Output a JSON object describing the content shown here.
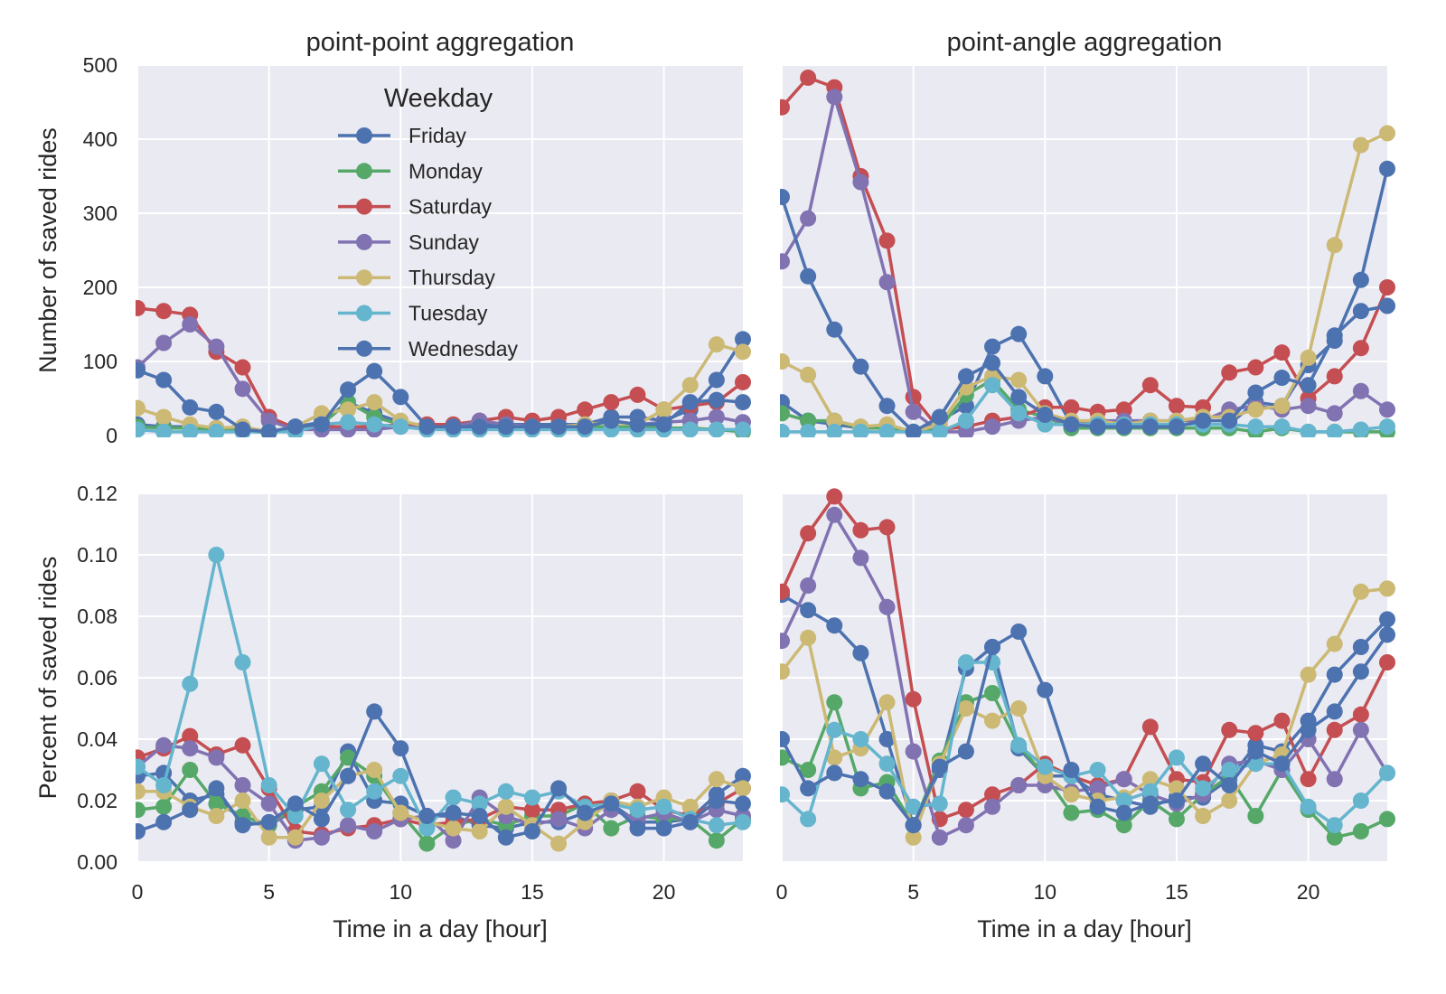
{
  "colors": {
    "panel_bg": "#eaeaf2",
    "grid": "#ffffff",
    "text": "#262626",
    "series": {
      "Friday": "#4c72b0",
      "Monday": "#55a868",
      "Saturday": "#c44e52",
      "Sunday": "#8172b2",
      "Thursday": "#ccb974",
      "Tuesday": "#64b5cd",
      "Wednesday": "#4c72b0"
    }
  },
  "legend": {
    "title": "Weekday",
    "entries": [
      "Friday",
      "Monday",
      "Saturday",
      "Sunday",
      "Thursday",
      "Tuesday",
      "Wednesday"
    ],
    "placement": "top-center of top-left panel"
  },
  "chart_data": [
    {
      "type": "line",
      "title": "point-point aggregation",
      "xlabel": "",
      "ylabel": "Number of saved rides",
      "xlim": [
        0,
        23
      ],
      "ylim": [
        0,
        500
      ],
      "xticks": [
        0,
        5,
        10,
        15,
        20
      ],
      "yticks": [
        0,
        100,
        200,
        300,
        400,
        500
      ],
      "ytick_labels": [
        "0",
        "100",
        "200",
        "300",
        "400",
        "500"
      ],
      "show_xtick_labels": false,
      "grid": true,
      "legend": true,
      "x": [
        0,
        1,
        2,
        3,
        4,
        5,
        6,
        7,
        8,
        9,
        10,
        11,
        12,
        13,
        14,
        15,
        16,
        17,
        18,
        19,
        20,
        21,
        22,
        23
      ],
      "series": [
        {
          "name": "Friday",
          "values": [
            15,
            12,
            12,
            10,
            8,
            5,
            12,
            18,
            45,
            30,
            18,
            12,
            12,
            15,
            15,
            15,
            15,
            15,
            25,
            25,
            20,
            35,
            75,
            130
          ]
        },
        {
          "name": "Monday",
          "values": [
            12,
            10,
            10,
            8,
            6,
            4,
            10,
            15,
            45,
            25,
            15,
            10,
            10,
            12,
            10,
            10,
            12,
            12,
            12,
            12,
            10,
            10,
            8,
            5
          ]
        },
        {
          "name": "Saturday",
          "values": [
            172,
            168,
            163,
            113,
            92,
            25,
            10,
            12,
            12,
            12,
            15,
            15,
            15,
            20,
            25,
            20,
            25,
            35,
            45,
            55,
            35,
            40,
            45,
            72
          ]
        },
        {
          "name": "Sunday",
          "values": [
            92,
            125,
            150,
            120,
            63,
            20,
            8,
            8,
            8,
            8,
            12,
            10,
            12,
            20,
            15,
            12,
            12,
            12,
            20,
            15,
            18,
            20,
            25,
            18
          ]
        },
        {
          "name": "Thursday",
          "values": [
            37,
            25,
            15,
            10,
            12,
            5,
            12,
            30,
            35,
            45,
            20,
            12,
            12,
            12,
            12,
            12,
            12,
            15,
            18,
            15,
            35,
            68,
            123,
            113
          ]
        },
        {
          "name": "Tuesday",
          "values": [
            8,
            5,
            5,
            5,
            5,
            5,
            5,
            15,
            18,
            15,
            12,
            8,
            8,
            8,
            8,
            8,
            8,
            8,
            8,
            8,
            8,
            8,
            8,
            8
          ]
        },
        {
          "name": "Wednesday",
          "values": [
            88,
            75,
            38,
            32,
            8,
            5,
            12,
            15,
            62,
            87,
            52,
            12,
            12,
            12,
            12,
            12,
            12,
            12,
            20,
            15,
            15,
            45,
            48,
            45
          ]
        }
      ]
    },
    {
      "type": "line",
      "title": "point-angle aggregation",
      "xlabel": "",
      "ylabel": "",
      "xlim": [
        0,
        23
      ],
      "ylim": [
        0,
        500
      ],
      "xticks": [
        0,
        5,
        10,
        15,
        20
      ],
      "yticks": [
        0,
        100,
        200,
        300,
        400,
        500
      ],
      "show_xtick_labels": false,
      "show_ytick_labels": false,
      "grid": true,
      "x": [
        0,
        1,
        2,
        3,
        4,
        5,
        6,
        7,
        8,
        9,
        10,
        11,
        12,
        13,
        14,
        15,
        16,
        17,
        18,
        19,
        20,
        21,
        22,
        23
      ],
      "series": [
        {
          "name": "Friday",
          "values": [
            45,
            20,
            15,
            10,
            10,
            5,
            20,
            40,
            120,
            137,
            80,
            15,
            15,
            15,
            15,
            15,
            15,
            15,
            45,
            40,
            95,
            128,
            210,
            360
          ]
        },
        {
          "name": "Monday",
          "values": [
            30,
            20,
            20,
            10,
            10,
            5,
            10,
            55,
            75,
            35,
            25,
            10,
            10,
            10,
            10,
            10,
            10,
            10,
            5,
            10,
            5,
            5,
            5,
            5
          ]
        },
        {
          "name": "Saturday",
          "values": [
            443,
            483,
            470,
            350,
            263,
            52,
            8,
            12,
            20,
            25,
            38,
            38,
            32,
            35,
            68,
            40,
            38,
            85,
            92,
            112,
            50,
            80,
            118,
            200
          ]
        },
        {
          "name": "Sunday",
          "values": [
            235,
            293,
            457,
            342,
            207,
            32,
            5,
            5,
            12,
            20,
            25,
            15,
            20,
            20,
            20,
            20,
            20,
            35,
            40,
            35,
            40,
            30,
            60,
            35
          ]
        },
        {
          "name": "Thursday",
          "values": [
            100,
            82,
            20,
            12,
            15,
            5,
            15,
            65,
            80,
            75,
            30,
            20,
            20,
            15,
            20,
            20,
            25,
            25,
            35,
            40,
            105,
            257,
            392,
            408
          ]
        },
        {
          "name": "Tuesday",
          "values": [
            5,
            5,
            5,
            5,
            5,
            5,
            5,
            20,
            68,
            30,
            15,
            15,
            15,
            15,
            15,
            15,
            15,
            15,
            12,
            12,
            5,
            5,
            8,
            12
          ]
        },
        {
          "name": "Wednesday",
          "values": [
            322,
            215,
            143,
            93,
            40,
            5,
            25,
            80,
            98,
            52,
            28,
            15,
            12,
            12,
            12,
            12,
            20,
            20,
            58,
            78,
            68,
            135,
            168,
            175
          ]
        }
      ]
    },
    {
      "type": "line",
      "title": "",
      "xlabel": "Time in a day [hour]",
      "ylabel": "Percent of saved rides",
      "xlim": [
        0,
        23
      ],
      "ylim": [
        0,
        0.12
      ],
      "xticks": [
        0,
        5,
        10,
        15,
        20
      ],
      "xtick_labels": [
        "0",
        "5",
        "10",
        "15",
        "20"
      ],
      "yticks": [
        0,
        0.02,
        0.04,
        0.06,
        0.08,
        0.1,
        0.12
      ],
      "ytick_labels": [
        "0.00",
        "0.02",
        "0.04",
        "0.06",
        "0.08",
        "0.10",
        "0.12"
      ],
      "grid": true,
      "x": [
        0,
        1,
        2,
        3,
        4,
        5,
        6,
        7,
        8,
        9,
        10,
        11,
        12,
        13,
        14,
        15,
        16,
        17,
        18,
        19,
        20,
        21,
        22,
        23
      ],
      "series": [
        {
          "name": "Friday",
          "values": [
            0.028,
            0.029,
            0.02,
            0.022,
            0.013,
            0.012,
            0.017,
            0.018,
            0.036,
            0.02,
            0.019,
            0.015,
            0.015,
            0.012,
            0.011,
            0.013,
            0.013,
            0.016,
            0.019,
            0.013,
            0.013,
            0.014,
            0.022,
            0.028
          ]
        },
        {
          "name": "Monday",
          "values": [
            0.017,
            0.018,
            0.03,
            0.019,
            0.015,
            0.012,
            0.018,
            0.023,
            0.034,
            0.028,
            0.016,
            0.006,
            0.012,
            0.014,
            0.012,
            0.015,
            0.015,
            0.019,
            0.011,
            0.015,
            0.014,
            0.014,
            0.007,
            0.014
          ]
        },
        {
          "name": "Saturday",
          "values": [
            0.034,
            0.037,
            0.041,
            0.035,
            0.038,
            0.024,
            0.01,
            0.009,
            0.011,
            0.012,
            0.014,
            0.012,
            0.013,
            0.014,
            0.018,
            0.017,
            0.017,
            0.019,
            0.02,
            0.023,
            0.017,
            0.015,
            0.019,
            0.024
          ]
        },
        {
          "name": "Sunday",
          "values": [
            0.031,
            0.038,
            0.037,
            0.034,
            0.025,
            0.019,
            0.007,
            0.008,
            0.012,
            0.01,
            0.014,
            0.015,
            0.007,
            0.021,
            0.015,
            0.012,
            0.014,
            0.011,
            0.017,
            0.014,
            0.016,
            0.013,
            0.017,
            0.015
          ]
        },
        {
          "name": "Thursday",
          "values": [
            0.023,
            0.023,
            0.018,
            0.015,
            0.02,
            0.008,
            0.008,
            0.02,
            0.028,
            0.03,
            0.016,
            0.013,
            0.011,
            0.01,
            0.018,
            0.012,
            0.006,
            0.013,
            0.02,
            0.018,
            0.021,
            0.018,
            0.027,
            0.024
          ]
        },
        {
          "name": "Tuesday",
          "values": [
            0.031,
            0.025,
            0.058,
            0.1,
            0.065,
            0.025,
            0.015,
            0.032,
            0.017,
            0.023,
            0.028,
            0.011,
            0.021,
            0.019,
            0.023,
            0.021,
            0.023,
            0.018,
            0.019,
            0.017,
            0.018,
            0.014,
            0.012,
            0.013
          ]
        },
        {
          "name": "Wednesday",
          "values": [
            0.01,
            0.013,
            0.017,
            0.024,
            0.012,
            0.013,
            0.019,
            0.014,
            0.028,
            0.049,
            0.037,
            0.015,
            0.016,
            0.015,
            0.008,
            0.01,
            0.024,
            0.016,
            0.019,
            0.011,
            0.011,
            0.013,
            0.02,
            0.019
          ]
        }
      ]
    },
    {
      "type": "line",
      "title": "",
      "xlabel": "Time in a day [hour]",
      "ylabel": "",
      "xlim": [
        0,
        23
      ],
      "ylim": [
        0,
        0.12
      ],
      "xticks": [
        0,
        5,
        10,
        15,
        20
      ],
      "xtick_labels": [
        "0",
        "5",
        "10",
        "15",
        "20"
      ],
      "yticks": [
        0,
        0.02,
        0.04,
        0.06,
        0.08,
        0.1,
        0.12
      ],
      "show_ytick_labels": false,
      "grid": true,
      "x": [
        0,
        1,
        2,
        3,
        4,
        5,
        6,
        7,
        8,
        9,
        10,
        11,
        12,
        13,
        14,
        15,
        16,
        17,
        18,
        19,
        20,
        21,
        22,
        23
      ],
      "series": [
        {
          "name": "Friday",
          "values": [
            0.087,
            0.082,
            0.077,
            0.068,
            0.04,
            0.012,
            0.03,
            0.063,
            0.07,
            0.037,
            0.028,
            0.028,
            0.022,
            0.02,
            0.018,
            0.021,
            0.021,
            0.027,
            0.038,
            0.036,
            0.046,
            0.061,
            0.07,
            0.079
          ]
        },
        {
          "name": "Monday",
          "values": [
            0.034,
            0.03,
            0.052,
            0.024,
            0.026,
            0.012,
            0.033,
            0.052,
            0.055,
            0.038,
            0.028,
            0.016,
            0.017,
            0.012,
            0.02,
            0.014,
            0.022,
            0.028,
            0.015,
            0.03,
            0.017,
            0.008,
            0.01,
            0.014
          ]
        },
        {
          "name": "Saturday",
          "values": [
            0.088,
            0.107,
            0.119,
            0.108,
            0.109,
            0.053,
            0.014,
            0.017,
            0.022,
            0.025,
            0.032,
            0.028,
            0.025,
            0.027,
            0.044,
            0.027,
            0.026,
            0.043,
            0.042,
            0.046,
            0.027,
            0.043,
            0.048,
            0.065
          ]
        },
        {
          "name": "Sunday",
          "values": [
            0.072,
            0.09,
            0.113,
            0.099,
            0.083,
            0.036,
            0.008,
            0.012,
            0.018,
            0.025,
            0.025,
            0.023,
            0.024,
            0.027,
            0.022,
            0.019,
            0.022,
            0.032,
            0.033,
            0.03,
            0.04,
            0.027,
            0.043,
            0.029
          ]
        },
        {
          "name": "Thursday",
          "values": [
            0.062,
            0.073,
            0.034,
            0.037,
            0.052,
            0.008,
            0.032,
            0.05,
            0.046,
            0.05,
            0.028,
            0.022,
            0.02,
            0.021,
            0.027,
            0.024,
            0.015,
            0.02,
            0.032,
            0.035,
            0.061,
            0.071,
            0.088,
            0.089
          ]
        },
        {
          "name": "Tuesday",
          "values": [
            0.022,
            0.014,
            0.043,
            0.04,
            0.032,
            0.018,
            0.019,
            0.065,
            0.065,
            0.038,
            0.031,
            0.028,
            0.03,
            0.02,
            0.023,
            0.034,
            0.024,
            0.03,
            0.032,
            0.032,
            0.018,
            0.012,
            0.02,
            0.029
          ]
        },
        {
          "name": "Wednesday",
          "values": [
            0.04,
            0.024,
            0.029,
            0.027,
            0.023,
            0.012,
            0.031,
            0.036,
            0.07,
            0.075,
            0.056,
            0.03,
            0.018,
            0.016,
            0.019,
            0.02,
            0.032,
            0.025,
            0.036,
            0.032,
            0.043,
            0.049,
            0.062,
            0.074
          ]
        }
      ]
    }
  ]
}
